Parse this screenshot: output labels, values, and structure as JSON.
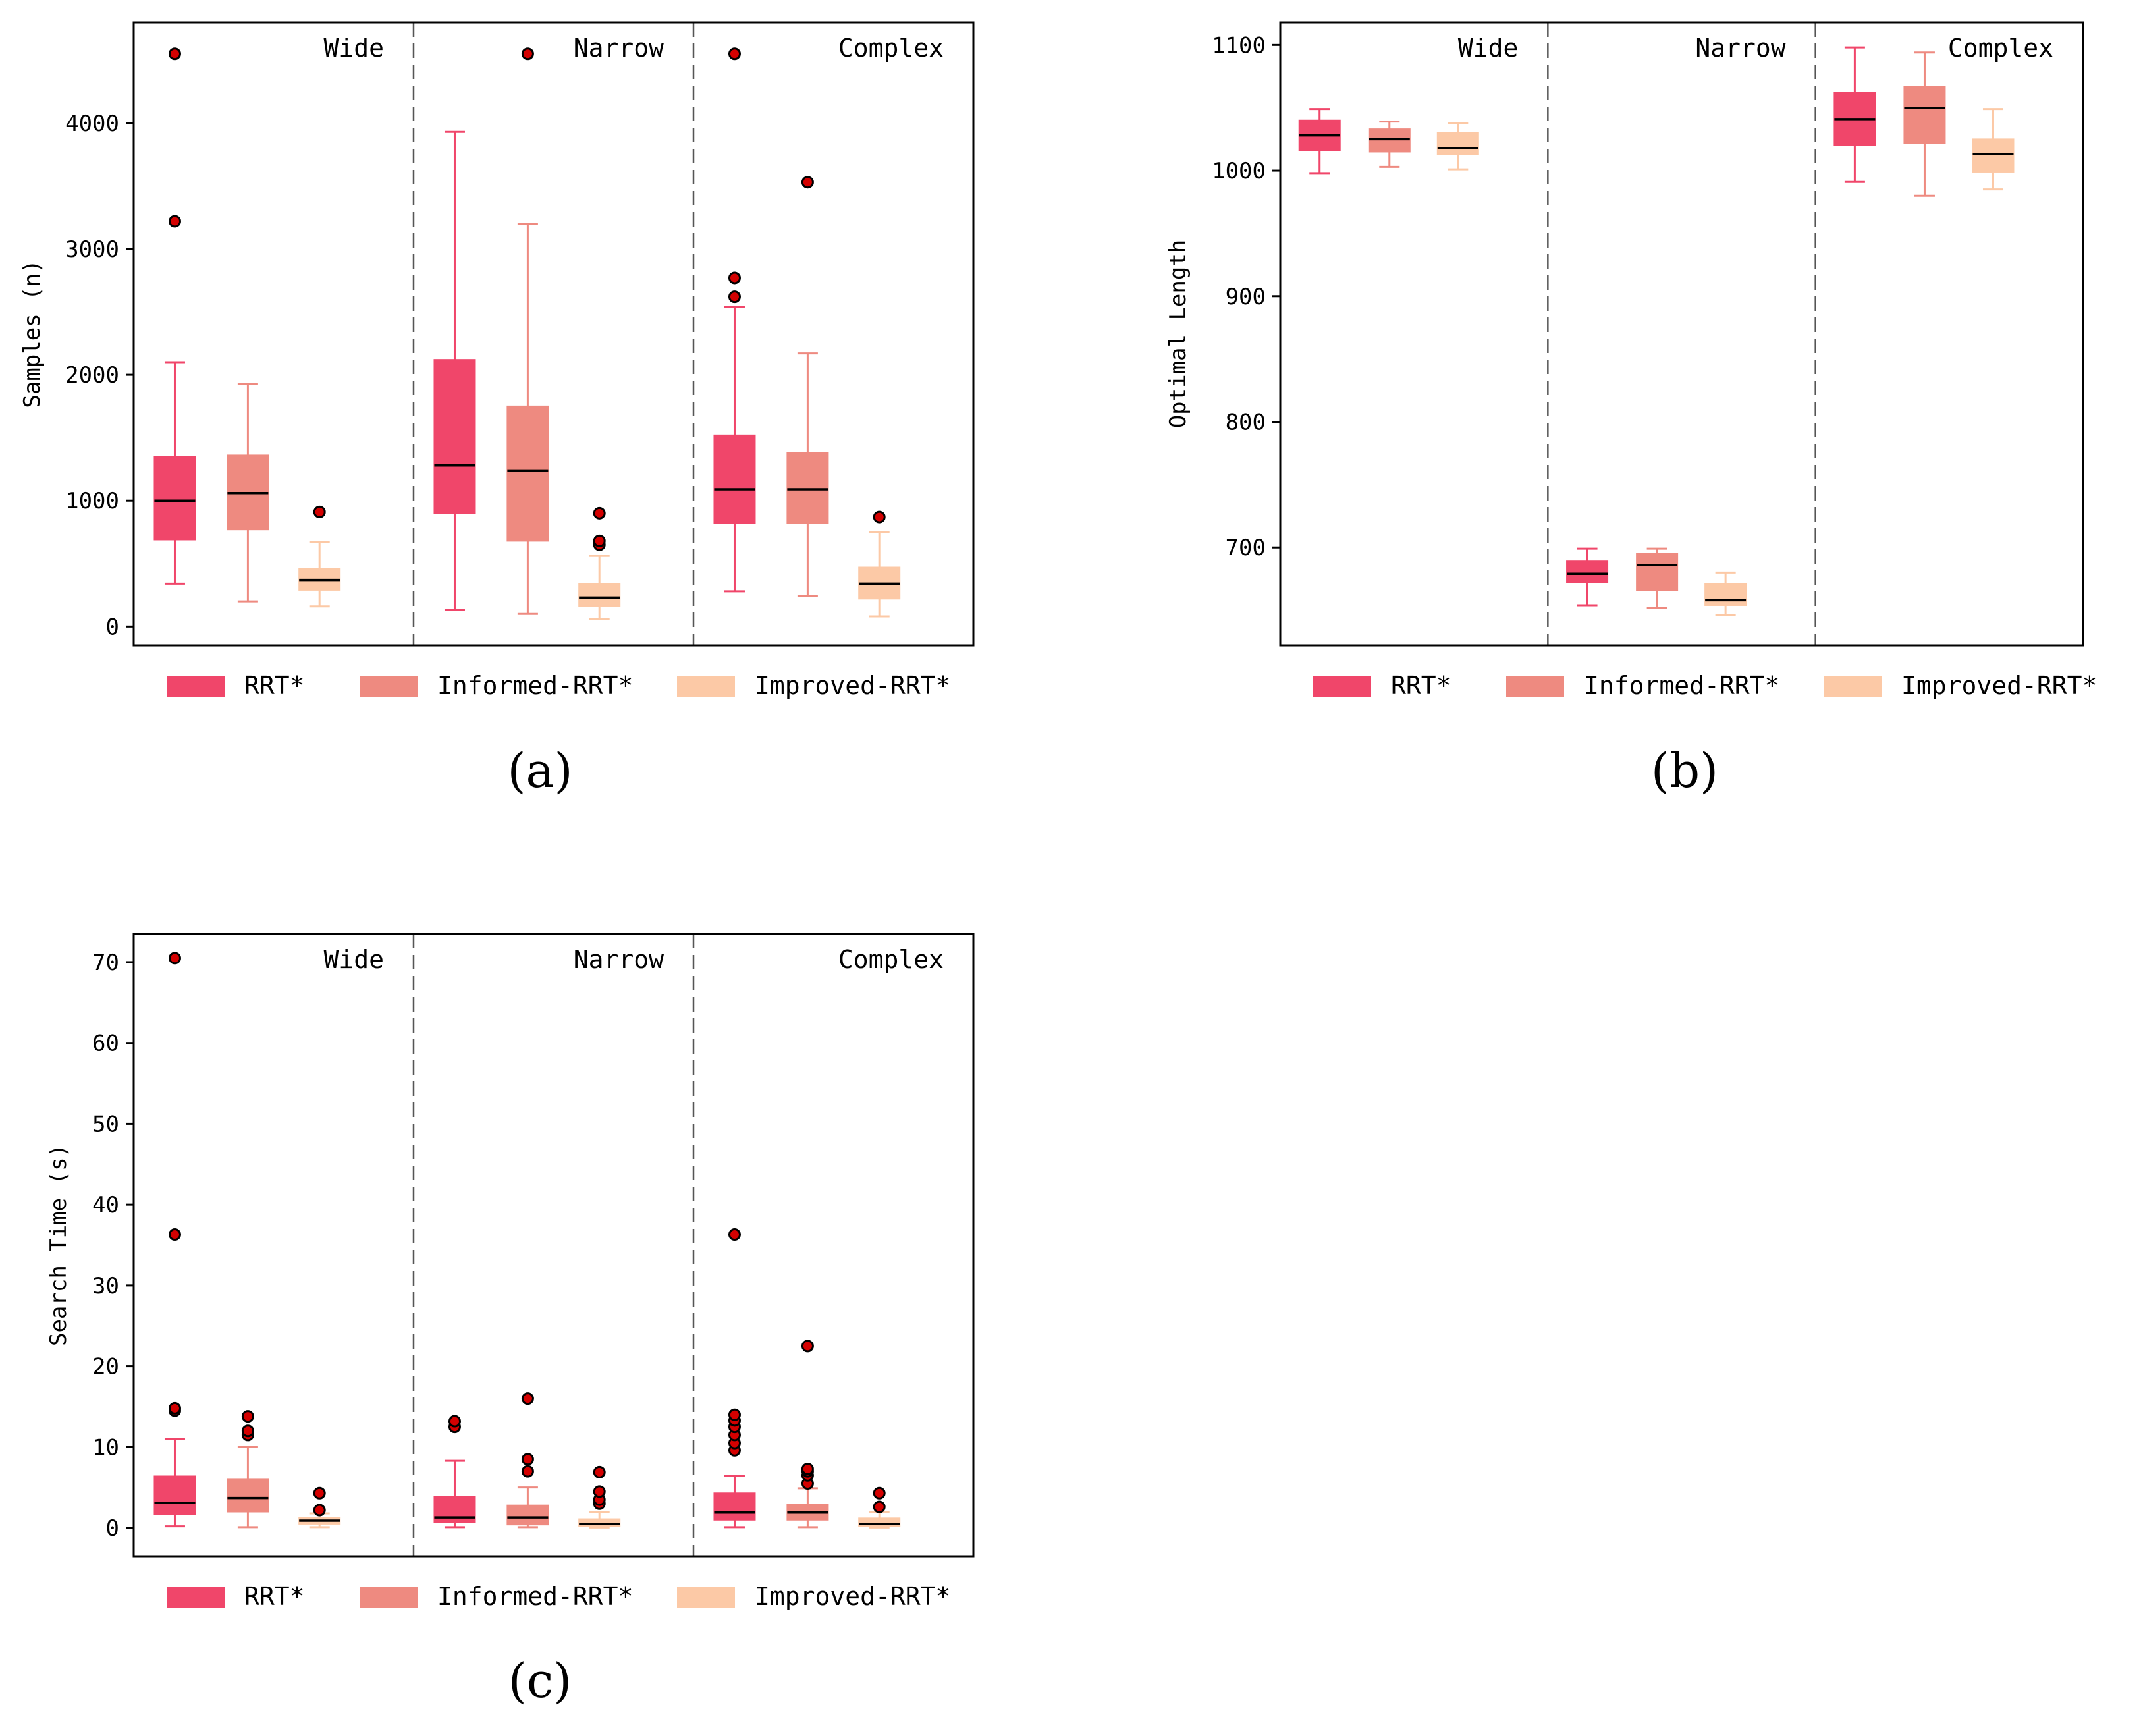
{
  "legend": [
    {
      "name": "RRT*",
      "color": "#f0466a"
    },
    {
      "name": "Informed-RRT*",
      "color": "#ee8a80"
    },
    {
      "name": "Improved-RRT*",
      "color": "#fcc9a6"
    }
  ],
  "environments": [
    "Wide",
    "Narrow",
    "Complex"
  ],
  "chart_data": [
    {
      "type": "box",
      "caption": "(a)",
      "ylabel": "Samples (n)",
      "ylim": [
        -150,
        4800
      ],
      "yticks": [
        0,
        1000,
        2000,
        3000,
        4000
      ],
      "tick_labels": [
        "0",
        "1000",
        "2000",
        "3000",
        "4000"
      ],
      "groups": [
        {
          "name": "Wide",
          "boxes": [
            {
              "series": "RRT*",
              "whislo": 340,
              "q1": 690,
              "med": 1000,
              "q3": 1350,
              "whishi": 2100,
              "fliers": [
                3220,
                4550
              ]
            },
            {
              "series": "Informed-RRT*",
              "whislo": 200,
              "q1": 770,
              "med": 1060,
              "q3": 1360,
              "whishi": 1930,
              "fliers": []
            },
            {
              "series": "Improved-RRT*",
              "whislo": 160,
              "q1": 290,
              "med": 370,
              "q3": 460,
              "whishi": 670,
              "fliers": [
                910
              ]
            }
          ]
        },
        {
          "name": "Narrow",
          "boxes": [
            {
              "series": "RRT*",
              "whislo": 130,
              "q1": 900,
              "med": 1280,
              "q3": 2120,
              "whishi": 3930,
              "fliers": []
            },
            {
              "series": "Informed-RRT*",
              "whislo": 100,
              "q1": 680,
              "med": 1240,
              "q3": 1750,
              "whishi": 3200,
              "fliers": [
                4550
              ]
            },
            {
              "series": "Improved-RRT*",
              "whislo": 60,
              "q1": 160,
              "med": 230,
              "q3": 340,
              "whishi": 560,
              "fliers": [
                650,
                680,
                900
              ]
            }
          ]
        },
        {
          "name": "Complex",
          "boxes": [
            {
              "series": "RRT*",
              "whislo": 280,
              "q1": 820,
              "med": 1090,
              "q3": 1520,
              "whishi": 2540,
              "fliers": [
                2620,
                2770,
                4550
              ]
            },
            {
              "series": "Informed-RRT*",
              "whislo": 240,
              "q1": 820,
              "med": 1090,
              "q3": 1380,
              "whishi": 2170,
              "fliers": [
                3530
              ]
            },
            {
              "series": "Improved-RRT*",
              "whislo": 80,
              "q1": 220,
              "med": 340,
              "q3": 470,
              "whishi": 750,
              "fliers": [
                870
              ]
            }
          ]
        }
      ]
    },
    {
      "type": "box",
      "caption": "(b)",
      "ylabel": "Optimal Length",
      "ylim": [
        622,
        1118
      ],
      "yticks": [
        700,
        800,
        900,
        1000,
        1100
      ],
      "tick_labels": [
        "700",
        "800",
        "900",
        "1000",
        "1100"
      ],
      "groups": [
        {
          "name": "Wide",
          "boxes": [
            {
              "series": "RRT*",
              "whislo": 998,
              "q1": 1016,
              "med": 1028,
              "q3": 1040,
              "whishi": 1049,
              "fliers": []
            },
            {
              "series": "Informed-RRT*",
              "whislo": 1003,
              "q1": 1015,
              "med": 1025,
              "q3": 1033,
              "whishi": 1039,
              "fliers": []
            },
            {
              "series": "Improved-RRT*",
              "whislo": 1001,
              "q1": 1013,
              "med": 1018,
              "q3": 1030,
              "whishi": 1038,
              "fliers": []
            }
          ]
        },
        {
          "name": "Narrow",
          "boxes": [
            {
              "series": "RRT*",
              "whislo": 654,
              "q1": 672,
              "med": 679,
              "q3": 689,
              "whishi": 699,
              "fliers": []
            },
            {
              "series": "Informed-RRT*",
              "whislo": 652,
              "q1": 666,
              "med": 686,
              "q3": 695,
              "whishi": 699,
              "fliers": []
            },
            {
              "series": "Improved-RRT*",
              "whislo": 646,
              "q1": 654,
              "med": 658,
              "q3": 671,
              "whishi": 680,
              "fliers": []
            }
          ]
        },
        {
          "name": "Complex",
          "boxes": [
            {
              "series": "RRT*",
              "whislo": 991,
              "q1": 1020,
              "med": 1041,
              "q3": 1062,
              "whishi": 1098,
              "fliers": []
            },
            {
              "series": "Informed-RRT*",
              "whislo": 980,
              "q1": 1022,
              "med": 1050,
              "q3": 1067,
              "whishi": 1094,
              "fliers": []
            },
            {
              "series": "Improved-RRT*",
              "whislo": 985,
              "q1": 999,
              "med": 1013,
              "q3": 1025,
              "whishi": 1049,
              "fliers": []
            }
          ]
        }
      ]
    },
    {
      "type": "box",
      "caption": "(c)",
      "ylabel": "Search Time (s)",
      "ylim": [
        -3.5,
        73.5
      ],
      "yticks": [
        0,
        10,
        20,
        30,
        40,
        50,
        60,
        70
      ],
      "tick_labels": [
        "0",
        "10",
        "20",
        "30",
        "40",
        "50",
        "60",
        "70"
      ],
      "groups": [
        {
          "name": "Wide",
          "boxes": [
            {
              "series": "RRT*",
              "whislo": 0.2,
              "q1": 1.7,
              "med": 3.1,
              "q3": 6.4,
              "whishi": 11.0,
              "fliers": [
                14.5,
                14.8,
                36.3,
                70.5
              ]
            },
            {
              "series": "Informed-RRT*",
              "whislo": 0.1,
              "q1": 2.0,
              "med": 3.7,
              "q3": 6.0,
              "whishi": 10.0,
              "fliers": [
                11.5,
                12.0,
                13.8
              ]
            },
            {
              "series": "Improved-RRT*",
              "whislo": 0.1,
              "q1": 0.5,
              "med": 0.9,
              "q3": 1.3,
              "whishi": 1.8,
              "fliers": [
                2.2,
                4.3
              ]
            }
          ]
        },
        {
          "name": "Narrow",
          "boxes": [
            {
              "series": "RRT*",
              "whislo": 0.1,
              "q1": 0.7,
              "med": 1.3,
              "q3": 3.9,
              "whishi": 8.3,
              "fliers": [
                12.5,
                13.2
              ]
            },
            {
              "series": "Informed-RRT*",
              "whislo": 0.1,
              "q1": 0.4,
              "med": 1.3,
              "q3": 2.8,
              "whishi": 5.0,
              "fliers": [
                7.0,
                8.5,
                16.0
              ]
            },
            {
              "series": "Improved-RRT*",
              "whislo": 0.05,
              "q1": 0.2,
              "med": 0.5,
              "q3": 1.1,
              "whishi": 2.0,
              "fliers": [
                3.0,
                3.5,
                4.5,
                6.9
              ]
            }
          ]
        },
        {
          "name": "Complex",
          "boxes": [
            {
              "series": "RRT*",
              "whislo": 0.1,
              "q1": 1.0,
              "med": 1.9,
              "q3": 4.3,
              "whishi": 6.4,
              "fliers": [
                9.6,
                10.5,
                11.5,
                12.5,
                13.3,
                14.0,
                36.3
              ]
            },
            {
              "series": "Informed-RRT*",
              "whislo": 0.1,
              "q1": 1.0,
              "med": 1.9,
              "q3": 2.9,
              "whishi": 4.9,
              "fliers": [
                5.5,
                6.5,
                7.0,
                7.3,
                22.5
              ]
            },
            {
              "series": "Improved-RRT*",
              "whislo": 0.05,
              "q1": 0.2,
              "med": 0.5,
              "q3": 1.2,
              "whishi": 2.0,
              "fliers": [
                2.6,
                4.3
              ]
            }
          ]
        }
      ]
    }
  ]
}
